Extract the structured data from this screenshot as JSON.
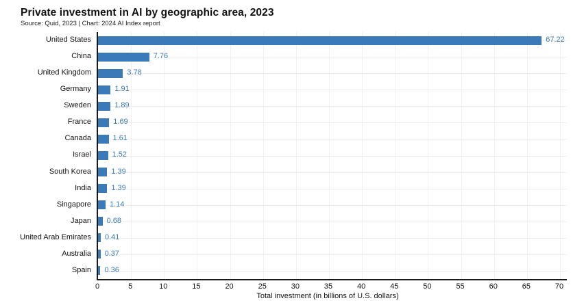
{
  "header": {
    "title": "Private investment in AI by geographic area, 2023",
    "subtitle": "Source: Quid, 2023 | Chart: 2024 AI Index report"
  },
  "chart_data": {
    "type": "bar",
    "orientation": "horizontal",
    "title": "Private investment in AI by geographic area, 2023",
    "subtitle": "Source: Quid, 2023 | Chart: 2024 AI Index report",
    "categories": [
      "United States",
      "China",
      "United Kingdom",
      "Germany",
      "Sweden",
      "France",
      "Canada",
      "Israel",
      "South Korea",
      "India",
      "Singapore",
      "Japan",
      "United Arab Emirates",
      "Australia",
      "Spain"
    ],
    "values": [
      67.22,
      7.76,
      3.78,
      1.91,
      1.89,
      1.69,
      1.61,
      1.52,
      1.39,
      1.39,
      1.14,
      0.68,
      0.41,
      0.37,
      0.36
    ],
    "value_labels": [
      "67.22",
      "7.76",
      "3.78",
      "1.91",
      "1.89",
      "1.69",
      "1.61",
      "1.52",
      "1.39",
      "1.39",
      "1.14",
      "0.68",
      "0.41",
      "0.37",
      "0.36"
    ],
    "xlabel": "Total investment (in billions of U.S. dollars)",
    "ylabel": "",
    "xlim": [
      0,
      70
    ],
    "xticks": [
      0,
      5,
      10,
      15,
      20,
      25,
      30,
      35,
      40,
      45,
      50,
      55,
      60,
      65,
      70
    ],
    "grid": true,
    "legend": "none",
    "colors": {
      "bar": "#3b7ab8",
      "value_label": "#3b7ab8",
      "axis": "#1a1a1a",
      "grid": "#f1eeee",
      "text": "#111111"
    }
  }
}
